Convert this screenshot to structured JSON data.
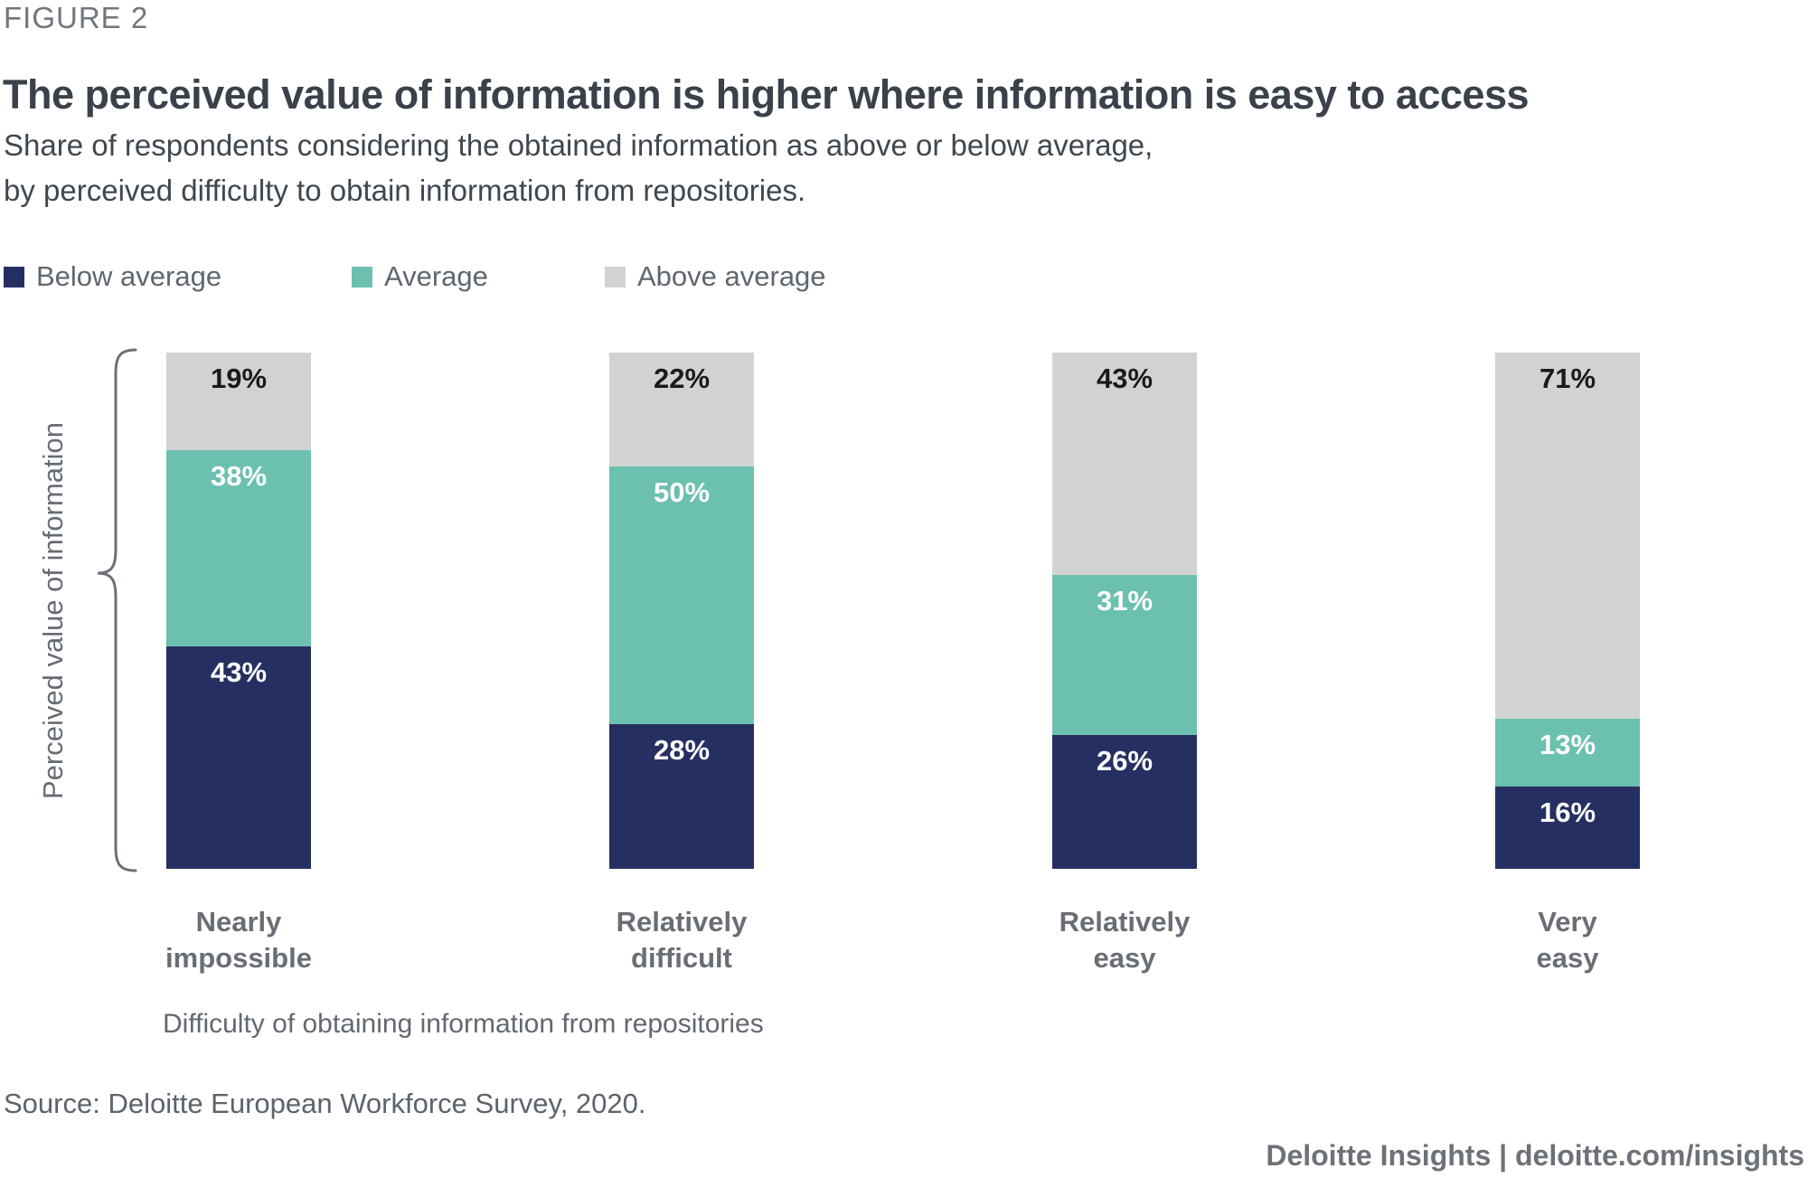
{
  "figure_label": "FIGURE 2",
  "title": "The perceived value of information is higher where information is easy to access",
  "subtitle": "Share of respondents considering the obtained information as above or below average,\nby perceived difficulty to obtain information from repositories.",
  "legend": [
    {
      "label": "Below average",
      "color": "#262f62"
    },
    {
      "label": "Average",
      "color": "#6cc0b0"
    },
    {
      "label": "Above average",
      "color": "#d1d3d3"
    }
  ],
  "y_axis_label": "Perceived value of information",
  "x_axis_label": "Difficulty of obtaining information from repositories",
  "source": "Source: Deloitte European Workforce Survey, 2020.",
  "footer": "Deloitte Insights | deloitte.com/insights",
  "colors": {
    "below_average": "#262f62",
    "average": "#6cc0b0",
    "above_average": "#d1d3d3",
    "title_text": "#3a414a",
    "axis_text": "#696e74",
    "brace": "#6a7076"
  },
  "chart_data": {
    "type": "bar",
    "stacked": true,
    "unit": "%",
    "title": "The perceived value of information is higher where information is easy to access",
    "xlabel": "Difficulty of obtaining information from repositories",
    "ylabel": "Perceived value of information",
    "ylim": [
      0,
      100
    ],
    "grid": false,
    "legend_position": "top",
    "categories": [
      "Nearly\nimpossible",
      "Relatively\ndifficult",
      "Relatively\neasy",
      "Very\neasy"
    ],
    "series": [
      {
        "name": "Below average",
        "color": "#262f62",
        "label_color": "#ffffff",
        "values": [
          43,
          28,
          26,
          16
        ]
      },
      {
        "name": "Average",
        "color": "#6cc0b0",
        "label_color": "#ffffff",
        "values": [
          38,
          50,
          31,
          13
        ]
      },
      {
        "name": "Above average",
        "color": "#d1d3d3",
        "label_color": "#1a1a1a",
        "values": [
          19,
          22,
          43,
          71
        ]
      }
    ]
  }
}
